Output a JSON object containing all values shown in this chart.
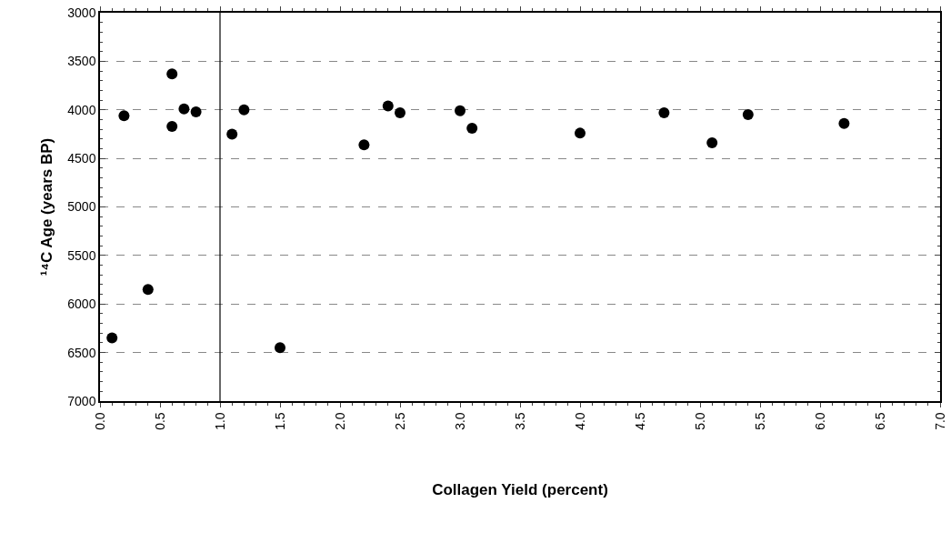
{
  "chart_data": {
    "type": "scatter",
    "xlabel": "Collagen Yield (percent)",
    "ylabel": "¹⁴C Age (years BP)",
    "x": [
      0.1,
      0.2,
      0.4,
      0.6,
      0.6,
      0.7,
      0.8,
      1.1,
      1.2,
      1.5,
      2.2,
      2.4,
      2.5,
      3.0,
      3.1,
      4.0,
      4.7,
      5.1,
      5.4,
      6.2
    ],
    "series": [
      {
        "color": "#000000",
        "values": [
          6350,
          4060,
          5850,
          3630,
          4170,
          3990,
          4020,
          4250,
          4000,
          6450,
          4360,
          3960,
          4030,
          4010,
          4190,
          4240,
          4030,
          4340,
          4050,
          4140
        ]
      }
    ],
    "xlim": [
      0,
      7
    ],
    "xticks": [
      {
        "value": 0,
        "label": "0.0"
      },
      0.5,
      {
        "value": 1,
        "label": "1.0"
      },
      1.5,
      {
        "value": 2,
        "label": "2.0"
      },
      2.5,
      {
        "value": 3,
        "label": "3.0"
      },
      3.5,
      {
        "value": 4,
        "label": "4.0"
      },
      4.5,
      {
        "value": 5,
        "label": "5.0"
      },
      5.5,
      {
        "value": 6,
        "label": "6.0"
      },
      6.5,
      {
        "value": 7,
        "label": "7.0"
      }
    ],
    "ylim": [
      7000,
      3000
    ],
    "yticks": [
      3000,
      3500,
      4000,
      4500,
      5000,
      5500,
      6000,
      6500,
      7000
    ],
    "ref_lines": [
      {
        "axis": "x",
        "value": 1,
        "color": "#000000",
        "line_style": "solid"
      }
    ],
    "grid": "y",
    "marker": "circle"
  }
}
